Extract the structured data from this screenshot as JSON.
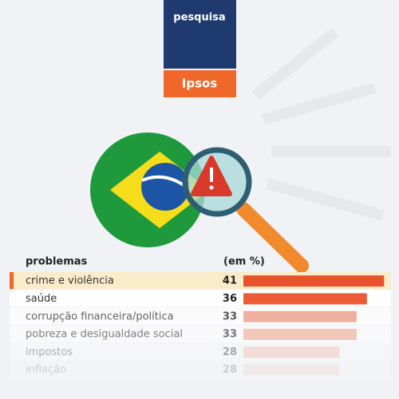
{
  "header": {
    "label": "pesquisa",
    "brand": "Ipsos"
  },
  "chart_data": {
    "type": "hbar",
    "category_header": "problemas",
    "value_header": "(em %)",
    "categories": [
      "crime e violência",
      "saúde",
      "corrupção financeira/política",
      "pobreza e desigualdade social",
      "impostos",
      "inflação"
    ],
    "values": [
      41,
      36,
      33,
      33,
      28,
      28
    ],
    "colors": [
      "#e8532b",
      "#ea5b36",
      "#ef9b80",
      "#f2ab93",
      "#f1b5a1",
      "#f3c5b6"
    ]
  }
}
